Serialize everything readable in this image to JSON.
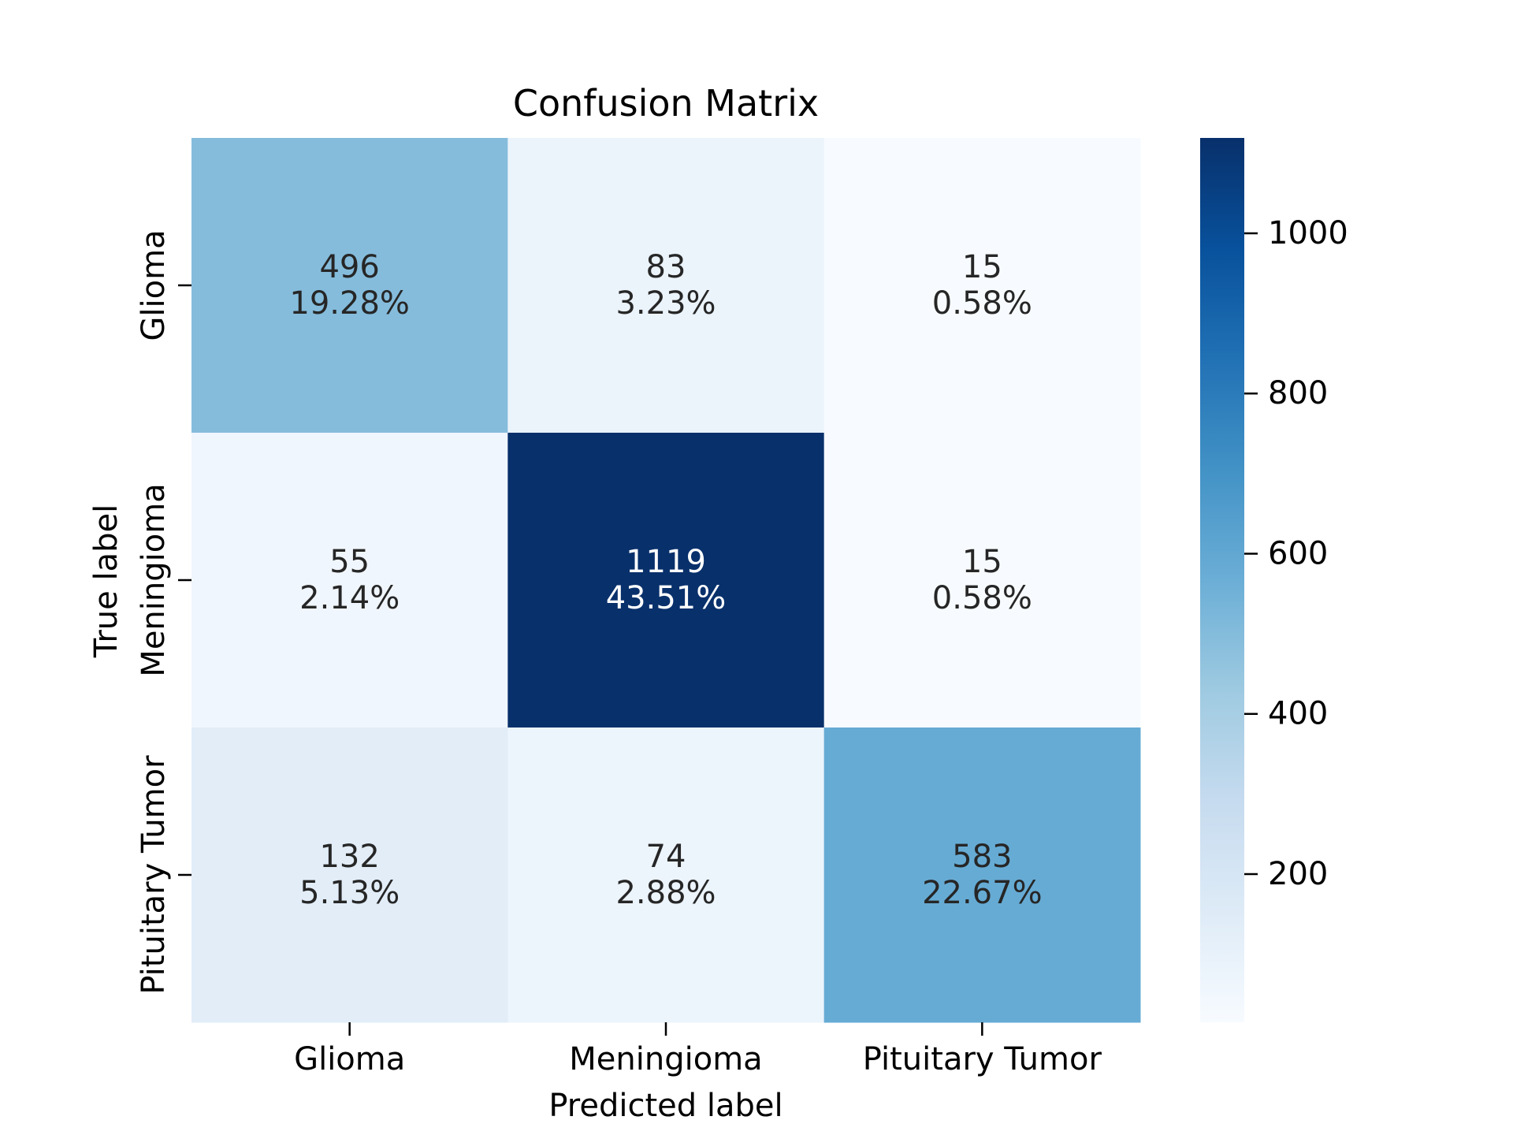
{
  "chart_data": {
    "type": "heatmap",
    "title": "Confusion Matrix",
    "xlabel": "Predicted label",
    "ylabel": "True label",
    "x_categories": [
      "Glioma",
      "Meningioma",
      "Pituitary Tumor"
    ],
    "y_categories": [
      "Glioma",
      "Meningioma",
      "Pituitary Tumor"
    ],
    "values": [
      [
        496,
        83,
        15
      ],
      [
        55,
        1119,
        15
      ],
      [
        132,
        74,
        583
      ]
    ],
    "percentages": [
      [
        "19.28%",
        "3.23%",
        "0.58%"
      ],
      [
        "2.14%",
        "43.51%",
        "0.58%"
      ],
      [
        "5.13%",
        "2.88%",
        "22.67%"
      ]
    ],
    "colormap": "Blues",
    "color_range": [
      15,
      1119
    ],
    "colorbar_ticks": [
      200,
      400,
      600,
      800,
      1000
    ],
    "colors": {
      "low": "#f7fbff",
      "high": "#08306b",
      "dark_text": "#262626",
      "light_text": "#ffffff"
    }
  }
}
